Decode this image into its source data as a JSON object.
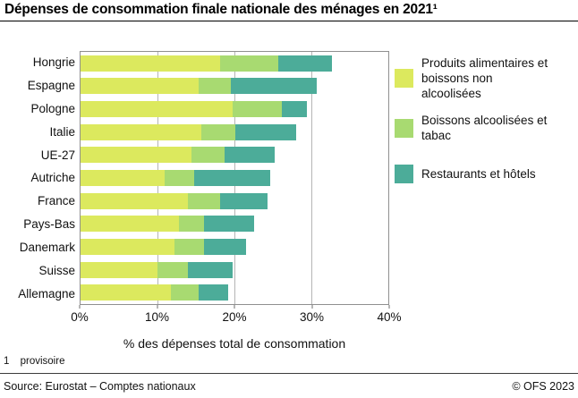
{
  "title": "Dépenses de consommation finale nationale des ménages en 2021¹",
  "chart_data": {
    "type": "bar",
    "orientation": "horizontal",
    "stacked": true,
    "categories": [
      "Hongrie",
      "Espagne",
      "Pologne",
      "Italie",
      "UE-27",
      "Autriche",
      "France",
      "Pays-Bas",
      "Danemark",
      "Suisse",
      "Allemagne"
    ],
    "series": [
      {
        "name": "Produits alimentaires et boissons non alcoolisées",
        "color": "#dce95e",
        "values": [
          18.1,
          15.3,
          19.8,
          15.7,
          14.4,
          10.9,
          14.0,
          12.8,
          12.2,
          10.0,
          11.7
        ]
      },
      {
        "name": "Boissons alcoolisées et tabac",
        "color": "#a8da71",
        "values": [
          7.6,
          4.2,
          6.4,
          4.4,
          4.3,
          3.9,
          4.1,
          3.3,
          3.9,
          3.9,
          3.6
        ]
      },
      {
        "name": "Restaurants et hôtels",
        "color": "#4cac99",
        "values": [
          7.0,
          11.2,
          3.2,
          7.9,
          6.5,
          9.8,
          6.2,
          6.5,
          5.4,
          5.9,
          3.9
        ]
      }
    ],
    "totals": [
      32.7,
      30.7,
      29.4,
      28.0,
      25.2,
      24.6,
      24.3,
      22.6,
      21.5,
      19.8,
      19.2
    ],
    "xlabel": "% des dépenses total de consommation",
    "x_ticks": [
      "0%",
      "10%",
      "20%",
      "30%",
      "40%"
    ],
    "xlim": [
      0,
      40
    ],
    "gridline_values": [
      10,
      20,
      30
    ],
    "grid": "vertical",
    "legend_position": "right"
  },
  "legend": {
    "items": [
      {
        "lines": [
          "Produits alimentaires et",
          "boissons non",
          "alcoolisées"
        ],
        "color": "#dce95e"
      },
      {
        "lines": [
          "Boissons alcoolisées et",
          "tabac"
        ],
        "color": "#a8da71"
      },
      {
        "lines": [
          "Restaurants et hôtels"
        ],
        "color": "#4cac99"
      }
    ]
  },
  "footnote": {
    "marker": "1",
    "text": "provisoire"
  },
  "footer": {
    "source": "Source: Eurostat – Comptes nationaux",
    "copyright": "© OFS 2023"
  }
}
